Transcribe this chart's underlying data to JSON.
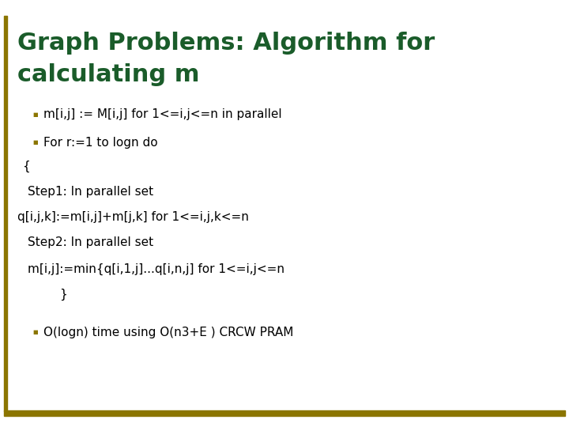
{
  "title_line1": "Graph Problems: Algorithm for",
  "title_line2": "calculating m",
  "title_color": "#1a5c2a",
  "background_color": "#ffffff",
  "left_bar_color": "#8B7500",
  "bottom_bar_color": "#8B7500",
  "bullet_color": "#8B7500",
  "bullet1": "m[i,j] := M[i,j] for 1<=i,j<=n in parallel",
  "bullet2": "For r:=1 to logn do",
  "line_brace_open": "{",
  "line_step1": "Step1: In parallel set",
  "line_q": "q[i,j,k]:=m[i,j]+m[j,k] for 1<=i,j,k<=n",
  "line_step2": "Step2: In parallel set",
  "line_m": "m[i,j]:=min{q[i,1,j]...q[i,n,j] for 1<=i,j<=n",
  "line_brace_close": "}",
  "bullet3": "O(logn) time using O(n3+E ) CRCW PRAM",
  "text_color": "#000000",
  "font_size_title": 22,
  "font_size_body": 11
}
